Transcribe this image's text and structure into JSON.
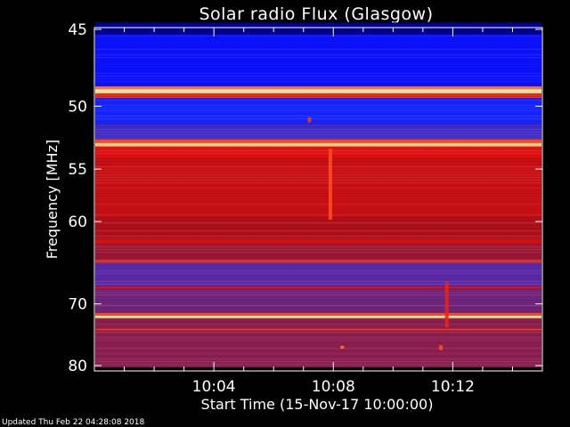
{
  "chart_data": {
    "type": "heatmap",
    "title": "Solar radio Flux (Glasgow)",
    "xlabel": "Start Time (15-Nov-17 10:00:00)",
    "ylabel": "Frequency [MHz]",
    "x_ticks": [
      "10:04",
      "10:08",
      "10:12"
    ],
    "x_tick_minutes": [
      4,
      8,
      12
    ],
    "xlim_minutes": [
      0,
      15
    ],
    "y_ticks": [
      45,
      50,
      55,
      60,
      70,
      80
    ],
    "ylim": [
      45,
      80
    ],
    "y_scale": "reciprocal",
    "grid": false,
    "background": "#000000",
    "colors": {
      "weak": "#1414ff",
      "mid_low": "#5a2aa8",
      "mid": "#a3182c",
      "strong": "#e01010",
      "bright": "#ff9a3c",
      "saturated": "#fff0b0"
    },
    "bands": [
      {
        "f_start": 44.6,
        "f_end": 45.3,
        "level": 0.05
      },
      {
        "f_start": 45.3,
        "f_end": 48.6,
        "level": 0.15
      },
      {
        "f_start": 48.6,
        "f_end": 48.8,
        "level": 0.85
      },
      {
        "f_start": 48.8,
        "f_end": 49.1,
        "level": 0.98
      },
      {
        "f_start": 49.1,
        "f_end": 49.4,
        "level": 0.7
      },
      {
        "f_start": 49.4,
        "f_end": 51.3,
        "level": 0.2
      },
      {
        "f_start": 51.3,
        "f_end": 52.5,
        "level": 0.3
      },
      {
        "f_start": 52.5,
        "f_end": 52.8,
        "level": 0.8
      },
      {
        "f_start": 52.8,
        "f_end": 53.1,
        "level": 0.95
      },
      {
        "f_start": 53.1,
        "f_end": 54.0,
        "level": 0.65
      },
      {
        "f_start": 54.0,
        "f_end": 59.6,
        "level": 0.6
      },
      {
        "f_start": 59.6,
        "f_end": 62.0,
        "level": 0.55
      },
      {
        "f_start": 62.0,
        "f_end": 62.4,
        "level": 0.65
      },
      {
        "f_start": 62.4,
        "f_end": 64.3,
        "level": 0.5
      },
      {
        "f_start": 64.3,
        "f_end": 64.6,
        "level": 0.72
      },
      {
        "f_start": 64.6,
        "f_end": 67.6,
        "level": 0.35
      },
      {
        "f_start": 67.6,
        "f_end": 67.9,
        "level": 0.65
      },
      {
        "f_start": 67.9,
        "f_end": 71.3,
        "level": 0.4
      },
      {
        "f_start": 71.3,
        "f_end": 71.7,
        "level": 0.78
      },
      {
        "f_start": 71.7,
        "f_end": 72.1,
        "level": 0.98
      },
      {
        "f_start": 72.1,
        "f_end": 73.7,
        "level": 0.45
      },
      {
        "f_start": 73.7,
        "f_end": 74.0,
        "level": 0.72
      },
      {
        "f_start": 74.0,
        "f_end": 80.3,
        "level": 0.45
      }
    ],
    "features": [
      {
        "t_minute": 7.9,
        "f_start": 53.3,
        "f_end": 59.8,
        "level": 0.8
      },
      {
        "t_minute": 7.2,
        "f_start": 50.8,
        "f_end": 51.2,
        "level": 0.75
      },
      {
        "t_minute": 11.8,
        "f_start": 67.0,
        "f_end": 73.5,
        "level": 0.7
      },
      {
        "t_minute": 11.6,
        "f_start": 76.4,
        "f_end": 77.2,
        "level": 0.8
      },
      {
        "t_minute": 8.3,
        "f_start": 76.5,
        "f_end": 77.0,
        "level": 0.85
      }
    ]
  },
  "footer_text": "Updated Thu Feb 22 04:28:08 2018"
}
